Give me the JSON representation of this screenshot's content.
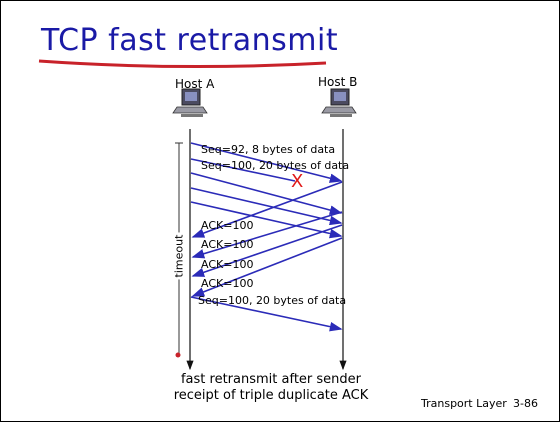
{
  "slide": {
    "title": "TCP fast retransmit",
    "host_a": "Host A",
    "host_b": "Host B",
    "messages": {
      "seq92": "Seq=92, 8 bytes of data",
      "seq100": "Seq=100, 20 bytes of data",
      "lost_marker": "X",
      "ack1": "ACK=100",
      "ack2": "ACK=100",
      "ack3": "ACK=100",
      "ack4": "ACK=100",
      "retransmit": "Seq=100, 20 bytes of data"
    },
    "timeout_label": "timeout",
    "caption_line1": "fast retransmit after sender",
    "caption_line2": "receipt of triple duplicate ACK",
    "footer": "Transport Layer",
    "page": "3-86",
    "colors": {
      "title": "#1a1aa6",
      "underline": "#c8222a",
      "arrow": "#2b2bb8",
      "loss": "#e01818"
    },
    "icons": {
      "host": "computer-icon"
    }
  }
}
